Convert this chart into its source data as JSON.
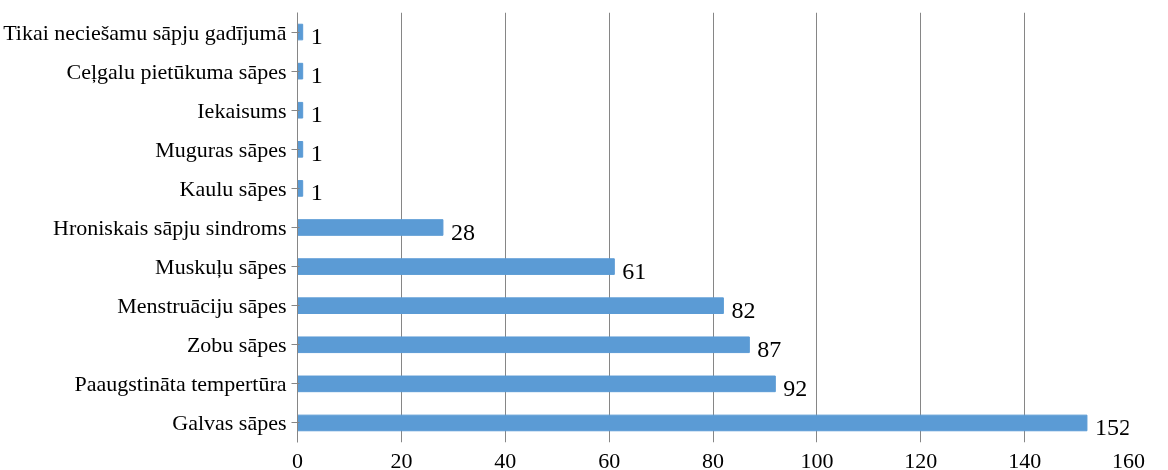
{
  "chart_data": {
    "type": "bar",
    "orientation": "horizontal",
    "categories": [
      "Tikai neciešamu sāpju gadījumā",
      "Ceļgalu pietūkuma sāpes",
      "Iekaisums",
      "Muguras sāpes",
      "Kaulu sāpes",
      "Hroniskais sāpju sindroms",
      "Muskuļu sāpes",
      "Menstruāciju sāpes",
      "Zobu sāpes",
      "Paaugstināta tempertūra",
      "Galvas sāpes"
    ],
    "values": [
      1,
      1,
      1,
      1,
      1,
      28,
      61,
      82,
      87,
      92,
      152
    ],
    "color": "#5b9bd5",
    "xlim": [
      0,
      160
    ],
    "xticks": [
      0,
      20,
      40,
      60,
      80,
      100,
      120,
      140,
      160
    ],
    "grid": "x",
    "data_labels": true
  }
}
